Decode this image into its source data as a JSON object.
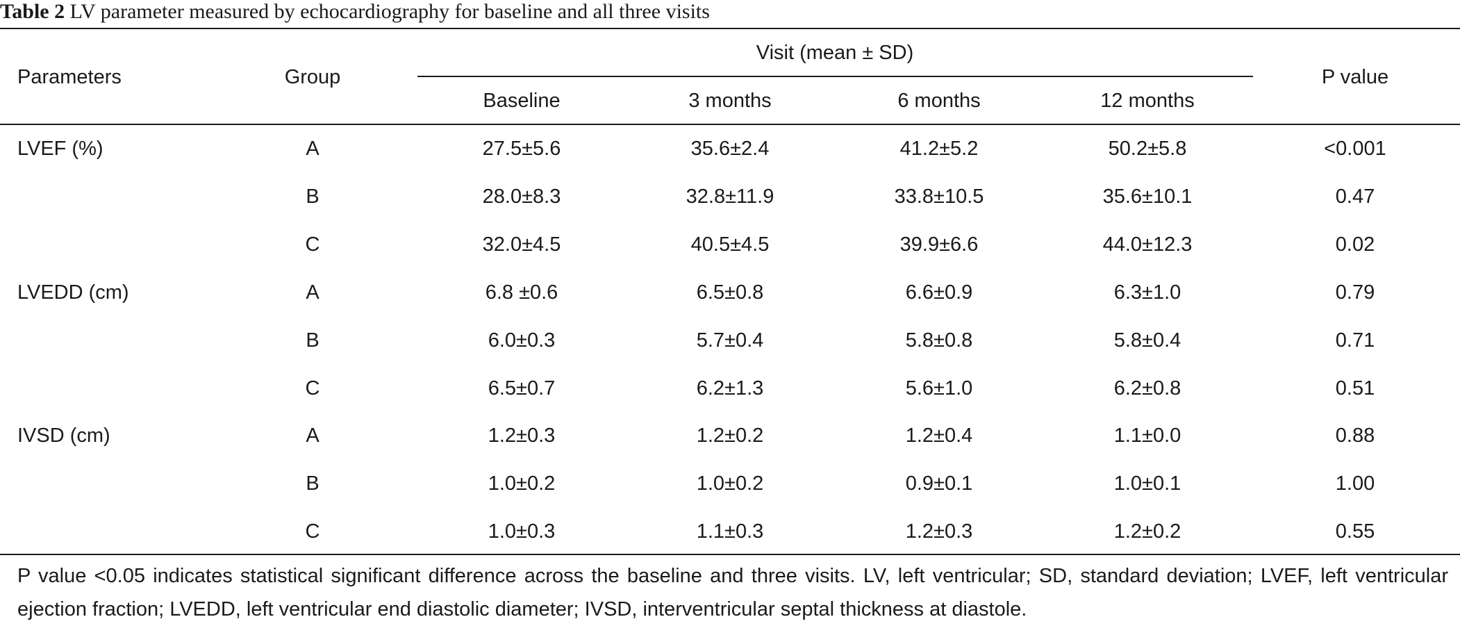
{
  "caption": {
    "label": "Table 2",
    "text": "LV parameter measured by echocardiography for baseline and all three visits"
  },
  "header": {
    "parameters": "Parameters",
    "group": "Group",
    "visit_group": "Visit (mean ± SD)",
    "visits": [
      "Baseline",
      "3 months",
      "6 months",
      "12 months"
    ],
    "p_value": "P value"
  },
  "rows": [
    {
      "parameter": "LVEF (%)",
      "group": "A",
      "values": [
        "27.5±5.6",
        "35.6±2.4",
        "41.2±5.2",
        "50.2±5.8"
      ],
      "p": "<0.001"
    },
    {
      "parameter": "",
      "group": "B",
      "values": [
        "28.0±8.3",
        "32.8±11.9",
        "33.8±10.5",
        "35.6±10.1"
      ],
      "p": "0.47"
    },
    {
      "parameter": "",
      "group": "C",
      "values": [
        "32.0±4.5",
        "40.5±4.5",
        "39.9±6.6",
        "44.0±12.3"
      ],
      "p": "0.02"
    },
    {
      "parameter": "LVEDD (cm)",
      "group": "A",
      "values": [
        "6.8 ±0.6",
        "6.5±0.8",
        "6.6±0.9",
        "6.3±1.0"
      ],
      "p": "0.79"
    },
    {
      "parameter": "",
      "group": "B",
      "values": [
        "6.0±0.3",
        "5.7±0.4",
        "5.8±0.8",
        "5.8±0.4"
      ],
      "p": "0.71"
    },
    {
      "parameter": "",
      "group": "C",
      "values": [
        "6.5±0.7",
        "6.2±1.3",
        "5.6±1.0",
        "6.2±0.8"
      ],
      "p": "0.51"
    },
    {
      "parameter": "IVSD (cm)",
      "group": "A",
      "values": [
        "1.2±0.3",
        "1.2±0.2",
        "1.2±0.4",
        "1.1±0.0"
      ],
      "p": "0.88"
    },
    {
      "parameter": "",
      "group": "B",
      "values": [
        "1.0±0.2",
        "1.0±0.2",
        "0.9±0.1",
        "1.0±0.1"
      ],
      "p": "1.00"
    },
    {
      "parameter": "",
      "group": "C",
      "values": [
        "1.0±0.3",
        "1.1±0.3",
        "1.2±0.3",
        "1.2±0.2"
      ],
      "p": "0.55"
    }
  ],
  "footnote": "P value <0.05 indicates statistical significant difference across the baseline and three visits. LV, left ventricular; SD, standard deviation; LVEF, left ventricular ejection fraction; LVEDD, left ventricular end diastolic diameter; IVSD, interventricular septal thickness at diastole."
}
